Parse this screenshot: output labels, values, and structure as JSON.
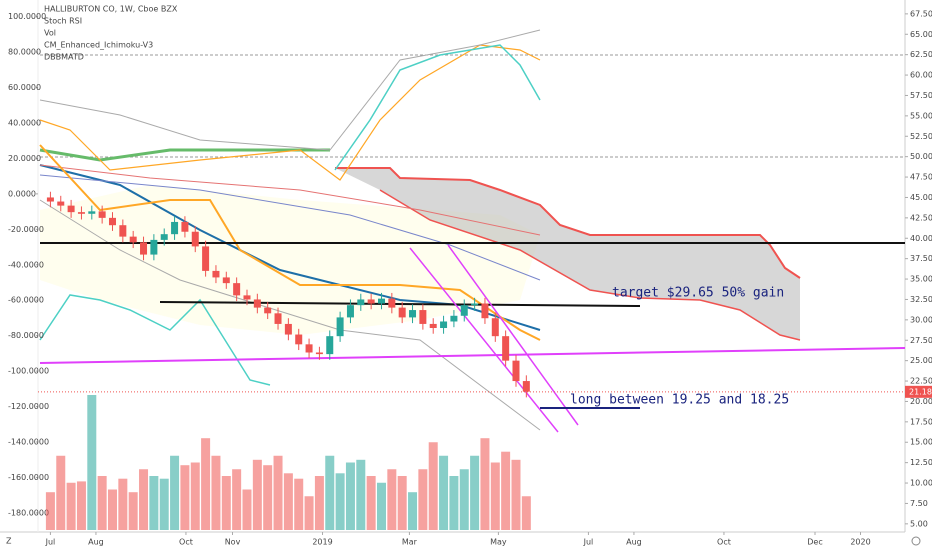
{
  "chart_data": {
    "type": "candlestick",
    "title": "HALLIBURTON CO, 1W, Cboe BZX",
    "indicators": [
      "Stoch RSI",
      "Vol",
      "CM_Enhanced_Ichimoku-V3",
      "DBBMATD"
    ],
    "annotations": [
      "target $29.65  50% gain",
      "long between 19.25 and 18.25"
    ],
    "last_price": 21.18,
    "up_color": "#26a69a",
    "down_color": "#ef5350",
    "x": [
      0,
      1,
      2,
      3,
      4,
      5,
      6,
      7,
      8,
      9,
      10,
      11,
      12,
      13,
      14,
      15,
      16,
      17,
      18,
      19,
      20,
      21,
      22,
      23,
      24,
      25,
      26,
      27,
      28,
      29,
      30,
      31,
      32,
      33,
      34,
      35,
      36,
      37,
      38,
      39,
      40,
      41,
      42,
      43,
      44,
      45,
      46
    ],
    "open": [
      45.0,
      44.5,
      44.0,
      43.2,
      43.0,
      43.3,
      42.5,
      41.6,
      40.2,
      39.5,
      38.0,
      39.8,
      40.5,
      42.0,
      40.8,
      39.0,
      36.0,
      35.2,
      34.5,
      33.0,
      32.5,
      31.5,
      30.8,
      29.5,
      28.2,
      27.0,
      26.0,
      25.8,
      28.0,
      30.3,
      31.8,
      32.5,
      32.0,
      32.6,
      31.5,
      30.3,
      31.2,
      29.5,
      29.0,
      29.8,
      30.5,
      31.8,
      32.0,
      30.2,
      28.0,
      25.0,
      22.5
    ],
    "high": [
      45.7,
      45.2,
      44.7,
      43.9,
      44.0,
      44.0,
      43.2,
      42.3,
      40.9,
      40.2,
      40.5,
      41.2,
      42.7,
      42.7,
      41.5,
      39.7,
      36.7,
      35.9,
      35.2,
      33.7,
      33.2,
      32.2,
      31.5,
      30.2,
      28.9,
      27.7,
      26.7,
      28.7,
      31.0,
      32.5,
      33.2,
      33.2,
      33.3,
      33.3,
      32.2,
      31.9,
      31.9,
      30.2,
      30.5,
      31.2,
      32.5,
      32.7,
      32.7,
      30.9,
      28.7,
      25.7,
      23.2
    ],
    "low": [
      43.8,
      43.3,
      42.5,
      42.3,
      42.3,
      41.8,
      40.9,
      39.5,
      38.8,
      37.3,
      37.3,
      39.1,
      39.8,
      40.1,
      38.3,
      35.3,
      34.5,
      33.8,
      32.3,
      31.8,
      30.8,
      30.1,
      28.8,
      27.5,
      26.3,
      25.3,
      25.1,
      25.1,
      27.3,
      29.6,
      31.1,
      31.3,
      31.3,
      30.8,
      29.6,
      29.6,
      28.8,
      28.3,
      28.3,
      29.1,
      29.8,
      31.1,
      29.5,
      27.3,
      24.3,
      21.8,
      20.5
    ],
    "close": [
      44.5,
      44.0,
      43.2,
      43.0,
      43.3,
      42.5,
      41.6,
      40.2,
      39.5,
      38.0,
      39.8,
      40.5,
      42.0,
      40.8,
      39.0,
      36.0,
      35.2,
      34.5,
      33.0,
      32.5,
      31.5,
      30.8,
      29.5,
      28.2,
      27.0,
      26.0,
      25.8,
      28.0,
      30.3,
      31.8,
      32.5,
      32.0,
      32.6,
      31.5,
      30.3,
      31.2,
      29.5,
      29.0,
      29.8,
      30.5,
      31.8,
      32.0,
      30.2,
      28.0,
      25.0,
      22.5,
      21.2
    ],
    "volume": {
      "ylim": [
        0,
        100
      ],
      "values": [
        28,
        55,
        35,
        36,
        100,
        40,
        30,
        38,
        28,
        45,
        40,
        38,
        55,
        48,
        50,
        68,
        55,
        40,
        45,
        30,
        52,
        48,
        55,
        42,
        38,
        25,
        40,
        55,
        42,
        50,
        52,
        40,
        35,
        45,
        40,
        28,
        45,
        65,
        55,
        40,
        45,
        55,
        68,
        50,
        58,
        52,
        25
      ]
    },
    "xlim": [
      -1.2,
      82.6
    ],
    "xticks": [
      {
        "value": 0,
        "label": "Jul"
      },
      {
        "value": 4.4,
        "label": "Aug"
      },
      {
        "value": 13.1,
        "label": "Oct"
      },
      {
        "value": 17.6,
        "label": "Nov"
      },
      {
        "value": 26.3,
        "label": "2019"
      },
      {
        "value": 34.7,
        "label": "Mar"
      },
      {
        "value": 43.3,
        "label": "May"
      },
      {
        "value": 52,
        "label": "Jul"
      },
      {
        "value": 56.4,
        "label": "Aug"
      },
      {
        "value": 65.1,
        "label": "Oct"
      },
      {
        "value": 73.9,
        "label": "Dec"
      },
      {
        "value": 78.3,
        "label": "2020"
      }
    ],
    "ylim": [
      4.0,
      69.2
    ],
    "yticks": [
      {
        "value": 5,
        "label": "5.00"
      },
      {
        "value": 7.5,
        "label": "7.50"
      },
      {
        "value": 10,
        "label": "10.00"
      },
      {
        "value": 12.5,
        "label": "12.50"
      },
      {
        "value": 15,
        "label": "15.00"
      },
      {
        "value": 17.5,
        "label": "17.50"
      },
      {
        "value": 20,
        "label": "20.00"
      },
      {
        "value": 22.5,
        "label": "22.50"
      },
      {
        "value": 25,
        "label": "25.00"
      },
      {
        "value": 27.5,
        "label": "27.50"
      },
      {
        "value": 30,
        "label": "30.00"
      },
      {
        "value": 32.5,
        "label": "32.50"
      },
      {
        "value": 35,
        "label": "35.00"
      },
      {
        "value": 37.5,
        "label": "37.50"
      },
      {
        "value": 40,
        "label": "40.00"
      },
      {
        "value": 42.5,
        "label": "42.50"
      },
      {
        "value": 45,
        "label": "45.00"
      },
      {
        "value": 47.5,
        "label": "47.50"
      },
      {
        "value": 50,
        "label": "50.00"
      },
      {
        "value": 52.5,
        "label": "52.50"
      },
      {
        "value": 55,
        "label": "55.00"
      },
      {
        "value": 57.5,
        "label": "57.50"
      },
      {
        "value": 60,
        "label": "60.00"
      },
      {
        "value": 62.5,
        "label": "62.50"
      },
      {
        "value": 65,
        "label": "65.00"
      },
      {
        "value": 67.5,
        "label": "67.50"
      }
    ],
    "y2lim": [
      -190.8,
      109.4
    ],
    "y2ticks": [
      {
        "value": 100,
        "label": "100.0000"
      },
      {
        "value": 80,
        "label": "80.0000"
      },
      {
        "value": 60,
        "label": "60.0000"
      },
      {
        "value": 40,
        "label": "40.0000"
      },
      {
        "value": 20,
        "label": "20.0000"
      },
      {
        "value": 0,
        "label": "0.0000"
      },
      {
        "value": -20,
        "label": "-20.0000"
      },
      {
        "value": -40,
        "label": "-40.0000"
      },
      {
        "value": -60,
        "label": "-60.0000"
      },
      {
        "value": -80,
        "label": "-80.0000"
      },
      {
        "value": -100,
        "label": "-100.0000"
      },
      {
        "value": -120,
        "label": "-120.0000"
      },
      {
        "value": -140,
        "label": "-140.0000"
      },
      {
        "value": -160,
        "label": "-160.0000"
      },
      {
        "value": -180,
        "label": "-180.0000"
      }
    ]
  }
}
